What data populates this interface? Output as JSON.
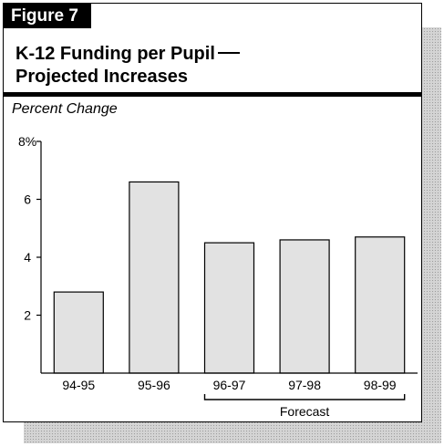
{
  "figure_tag": "Figure 7",
  "title_line1": "K-12 Funding per Pupil",
  "title_line2": "Projected Increases",
  "chart_data": {
    "type": "bar",
    "ylabel": "Percent Change",
    "categories": [
      "94-95",
      "95-96",
      "96-97",
      "97-98",
      "98-99"
    ],
    "values": [
      2.8,
      6.6,
      4.5,
      4.6,
      4.7
    ],
    "ylim": [
      0,
      8
    ],
    "yticks": [
      2,
      4,
      6
    ],
    "ytick_top_label": "8%",
    "bracket_label": "Forecast",
    "bracket_categories": [
      "96-97",
      "97-98",
      "98-99"
    ],
    "bar_color": "#e2e2e2",
    "grid": false
  }
}
